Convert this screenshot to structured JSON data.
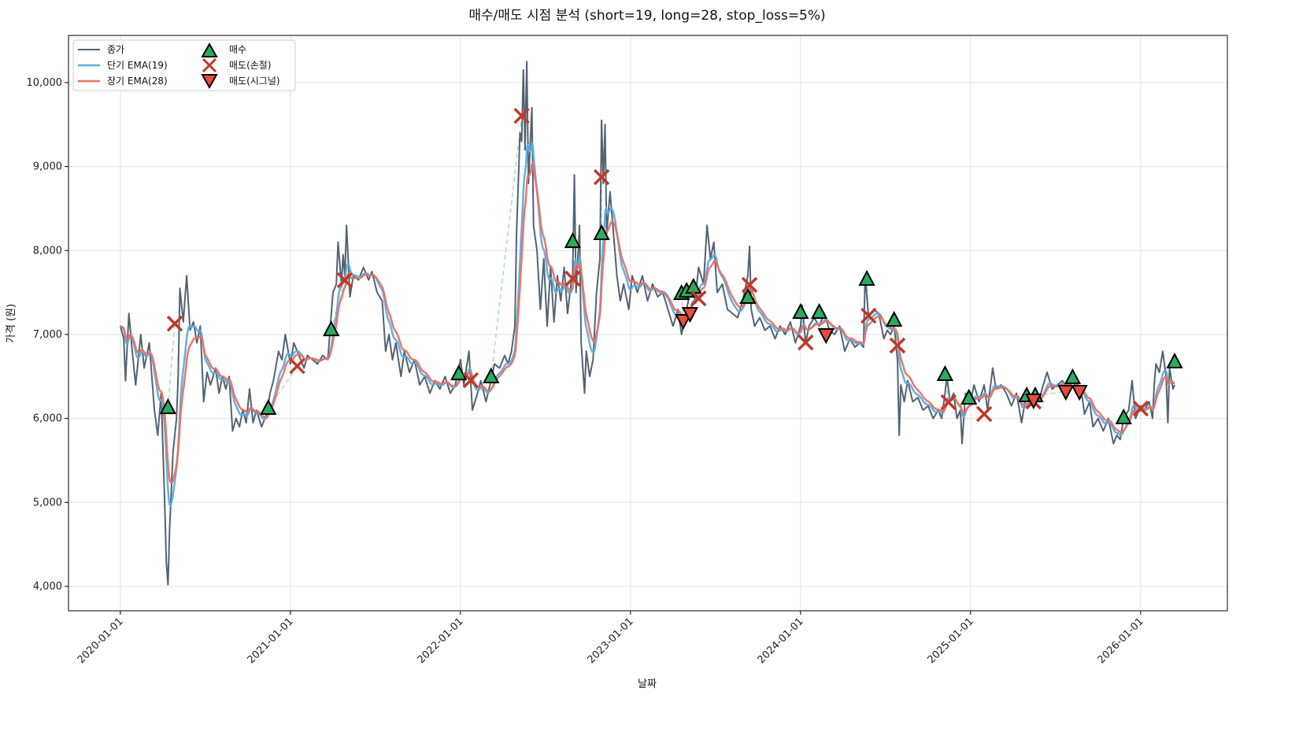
{
  "chart_data": {
    "type": "line",
    "title": "매수/매도 시점 분석 (short=19, long=28, stop_loss=5%)",
    "xlabel": "날짜",
    "ylabel": "가격 (원)",
    "xlim": [
      2019.695,
      2026.51
    ],
    "ylim": [
      3709,
      10562
    ],
    "grid": true,
    "legend_position": "top-left",
    "x_ticks": [
      {
        "value": 2020,
        "label": "2020-01-01"
      },
      {
        "value": 2021,
        "label": "2021-01-01"
      },
      {
        "value": 2022,
        "label": "2022-01-01"
      },
      {
        "value": 2023,
        "label": "2023-01-01"
      },
      {
        "value": 2024,
        "label": "2024-01-01"
      },
      {
        "value": 2025,
        "label": "2025-01-01"
      },
      {
        "value": 2026,
        "label": "2026-01-01"
      }
    ],
    "y_ticks": [
      {
        "value": 4000,
        "label": "4,000"
      },
      {
        "value": 5000,
        "label": "5,000"
      },
      {
        "value": 6000,
        "label": "6,000"
      },
      {
        "value": 7000,
        "label": "7,000"
      },
      {
        "value": 8000,
        "label": "8,000"
      },
      {
        "value": 9000,
        "label": "9,000"
      },
      {
        "value": 10000,
        "label": "10,000"
      }
    ],
    "legend": {
      "close": "종가",
      "short_ema": "단기 EMA(19)",
      "long_ema": "장기 EMA(28)",
      "buy": "매수",
      "sell_stop": "매도(손절)",
      "sell_signal": "매도(시그널)"
    },
    "colors": {
      "close": "#536272",
      "short_ema": "#5dade2",
      "long_ema": "#ec7063",
      "buy": "#27ae60",
      "sell_stop": "#c0392b",
      "sell_signal": "#e74c3c",
      "trade_line": "#a9dfbf"
    },
    "ema_spans": {
      "short": 19,
      "long": 28
    },
    "close": [
      [
        2020.0,
        7100
      ],
      [
        2020.02,
        6950
      ],
      [
        2020.03,
        6450
      ],
      [
        2020.05,
        7250
      ],
      [
        2020.07,
        6800
      ],
      [
        2020.09,
        6400
      ],
      [
        2020.12,
        7000
      ],
      [
        2020.14,
        6600
      ],
      [
        2020.17,
        6900
      ],
      [
        2020.2,
        6100
      ],
      [
        2020.22,
        5800
      ],
      [
        2020.24,
        6300
      ],
      [
        2020.26,
        5050
      ],
      [
        2020.27,
        4300
      ],
      [
        2020.28,
        4020
      ],
      [
        2020.29,
        4700
      ],
      [
        2020.31,
        5600
      ],
      [
        2020.33,
        6000
      ],
      [
        2020.34,
        6500
      ],
      [
        2020.35,
        7550
      ],
      [
        2020.37,
        7150
      ],
      [
        2020.39,
        7700
      ],
      [
        2020.41,
        7050
      ],
      [
        2020.43,
        7150
      ],
      [
        2020.45,
        6900
      ],
      [
        2020.47,
        7100
      ],
      [
        2020.49,
        6200
      ],
      [
        2020.51,
        6550
      ],
      [
        2020.53,
        6400
      ],
      [
        2020.56,
        6600
      ],
      [
        2020.58,
        6300
      ],
      [
        2020.6,
        6500
      ],
      [
        2020.62,
        6350
      ],
      [
        2020.64,
        6500
      ],
      [
        2020.66,
        5850
      ],
      [
        2020.68,
        6000
      ],
      [
        2020.7,
        5900
      ],
      [
        2020.72,
        6100
      ],
      [
        2020.74,
        5950
      ],
      [
        2020.76,
        6350
      ],
      [
        2020.78,
        5950
      ],
      [
        2020.8,
        6100
      ],
      [
        2020.83,
        5900
      ],
      [
        2020.86,
        6050
      ],
      [
        2020.88,
        6300
      ],
      [
        2020.9,
        6450
      ],
      [
        2020.93,
        6800
      ],
      [
        2020.95,
        6700
      ],
      [
        2020.97,
        7000
      ],
      [
        2021.0,
        6650
      ],
      [
        2021.02,
        6900
      ],
      [
        2021.05,
        6750
      ],
      [
        2021.08,
        6600
      ],
      [
        2021.1,
        6750
      ],
      [
        2021.13,
        6700
      ],
      [
        2021.16,
        6650
      ],
      [
        2021.19,
        6750
      ],
      [
        2021.22,
        6700
      ],
      [
        2021.25,
        7500
      ],
      [
        2021.27,
        7600
      ],
      [
        2021.28,
        8100
      ],
      [
        2021.3,
        7600
      ],
      [
        2021.31,
        7950
      ],
      [
        2021.32,
        7700
      ],
      [
        2021.33,
        8300
      ],
      [
        2021.35,
        7450
      ],
      [
        2021.37,
        7700
      ],
      [
        2021.4,
        7650
      ],
      [
        2021.43,
        7800
      ],
      [
        2021.46,
        7650
      ],
      [
        2021.48,
        7750
      ],
      [
        2021.51,
        7500
      ],
      [
        2021.54,
        7400
      ],
      [
        2021.56,
        6800
      ],
      [
        2021.58,
        7000
      ],
      [
        2021.6,
        6700
      ],
      [
        2021.62,
        6900
      ],
      [
        2021.65,
        6500
      ],
      [
        2021.67,
        6800
      ],
      [
        2021.7,
        6550
      ],
      [
        2021.73,
        6700
      ],
      [
        2021.76,
        6400
      ],
      [
        2021.79,
        6500
      ],
      [
        2021.82,
        6300
      ],
      [
        2021.85,
        6450
      ],
      [
        2021.88,
        6350
      ],
      [
        2021.91,
        6500
      ],
      [
        2021.94,
        6300
      ],
      [
        2021.97,
        6400
      ],
      [
        2022.0,
        6700
      ],
      [
        2022.02,
        6400
      ],
      [
        2022.05,
        6800
      ],
      [
        2022.07,
        6100
      ],
      [
        2022.1,
        6300
      ],
      [
        2022.12,
        6450
      ],
      [
        2022.15,
        6200
      ],
      [
        2022.18,
        6450
      ],
      [
        2022.2,
        6650
      ],
      [
        2022.23,
        6600
      ],
      [
        2022.26,
        6750
      ],
      [
        2022.28,
        6650
      ],
      [
        2022.3,
        6800
      ],
      [
        2022.32,
        7100
      ],
      [
        2022.33,
        8200
      ],
      [
        2022.35,
        9400
      ],
      [
        2022.36,
        9300
      ],
      [
        2022.37,
        10150
      ],
      [
        2022.38,
        9200
      ],
      [
        2022.39,
        10250
      ],
      [
        2022.4,
        8800
      ],
      [
        2022.42,
        9700
      ],
      [
        2022.43,
        8300
      ],
      [
        2022.45,
        8000
      ],
      [
        2022.47,
        7300
      ],
      [
        2022.49,
        7900
      ],
      [
        2022.51,
        7100
      ],
      [
        2022.53,
        7800
      ],
      [
        2022.55,
        7150
      ],
      [
        2022.57,
        7700
      ],
      [
        2022.59,
        7400
      ],
      [
        2022.61,
        7800
      ],
      [
        2022.63,
        7250
      ],
      [
        2022.65,
        7600
      ],
      [
        2022.66,
        7700
      ],
      [
        2022.67,
        8900
      ],
      [
        2022.68,
        7500
      ],
      [
        2022.7,
        8300
      ],
      [
        2022.71,
        6900
      ],
      [
        2022.73,
        6300
      ],
      [
        2022.74,
        6800
      ],
      [
        2022.76,
        6500
      ],
      [
        2022.78,
        6700
      ],
      [
        2022.8,
        7500
      ],
      [
        2022.82,
        7900
      ],
      [
        2022.83,
        9550
      ],
      [
        2022.84,
        8800
      ],
      [
        2022.85,
        9500
      ],
      [
        2022.86,
        8200
      ],
      [
        2022.88,
        8700
      ],
      [
        2022.9,
        8200
      ],
      [
        2022.92,
        7700
      ],
      [
        2022.94,
        7400
      ],
      [
        2022.96,
        7600
      ],
      [
        2022.99,
        7300
      ],
      [
        2023.01,
        7700
      ],
      [
        2023.04,
        7500
      ],
      [
        2023.07,
        7700
      ],
      [
        2023.1,
        7400
      ],
      [
        2023.13,
        7600
      ],
      [
        2023.16,
        7450
      ],
      [
        2023.19,
        7500
      ],
      [
        2023.22,
        7300
      ],
      [
        2023.25,
        7100
      ],
      [
        2023.28,
        7300
      ],
      [
        2023.3,
        7000
      ],
      [
        2023.33,
        7300
      ],
      [
        2023.36,
        7600
      ],
      [
        2023.38,
        7400
      ],
      [
        2023.4,
        7800
      ],
      [
        2023.43,
        7600
      ],
      [
        2023.45,
        8300
      ],
      [
        2023.47,
        7900
      ],
      [
        2023.49,
        8100
      ],
      [
        2023.51,
        7500
      ],
      [
        2023.54,
        7600
      ],
      [
        2023.57,
        7300
      ],
      [
        2023.6,
        7250
      ],
      [
        2023.63,
        7200
      ],
      [
        2023.66,
        7400
      ],
      [
        2023.69,
        7700
      ],
      [
        2023.7,
        8050
      ],
      [
        2023.71,
        7300
      ],
      [
        2023.73,
        7100
      ],
      [
        2023.76,
        7200
      ],
      [
        2023.79,
        7050
      ],
      [
        2023.82,
        7100
      ],
      [
        2023.85,
        6950
      ],
      [
        2023.88,
        7100
      ],
      [
        2023.91,
        7000
      ],
      [
        2023.94,
        7150
      ],
      [
        2023.97,
        6900
      ],
      [
        2024.0,
        7100
      ],
      [
        2024.01,
        7350
      ],
      [
        2024.03,
        6900
      ],
      [
        2024.05,
        7100
      ],
      [
        2024.08,
        7200
      ],
      [
        2024.11,
        7100
      ],
      [
        2024.14,
        7250
      ],
      [
        2024.17,
        7050
      ],
      [
        2024.2,
        7000
      ],
      [
        2024.23,
        7100
      ],
      [
        2024.26,
        6800
      ],
      [
        2024.29,
        6950
      ],
      [
        2024.32,
        6850
      ],
      [
        2024.35,
        6900
      ],
      [
        2024.37,
        6850
      ],
      [
        2024.38,
        7700
      ],
      [
        2024.4,
        7200
      ],
      [
        2024.43,
        7300
      ],
      [
        2024.46,
        7250
      ],
      [
        2024.49,
        6950
      ],
      [
        2024.51,
        7050
      ],
      [
        2024.53,
        7000
      ],
      [
        2024.55,
        7100
      ],
      [
        2024.57,
        6700
      ],
      [
        2024.58,
        5800
      ],
      [
        2024.59,
        6400
      ],
      [
        2024.61,
        6200
      ],
      [
        2024.63,
        6450
      ],
      [
        2024.66,
        6200
      ],
      [
        2024.69,
        6250
      ],
      [
        2024.72,
        6100
      ],
      [
        2024.75,
        6150
      ],
      [
        2024.78,
        6000
      ],
      [
        2024.81,
        6100
      ],
      [
        2024.83,
        6000
      ],
      [
        2024.85,
        6300
      ],
      [
        2024.86,
        6500
      ],
      [
        2024.88,
        6200
      ],
      [
        2024.9,
        6300
      ],
      [
        2024.92,
        6000
      ],
      [
        2024.94,
        6100
      ],
      [
        2024.95,
        5700
      ],
      [
        2024.97,
        6300
      ],
      [
        2025.0,
        6200
      ],
      [
        2025.02,
        6400
      ],
      [
        2025.05,
        6200
      ],
      [
        2025.08,
        6400
      ],
      [
        2025.1,
        6100
      ],
      [
        2025.13,
        6600
      ],
      [
        2025.15,
        6350
      ],
      [
        2025.18,
        6400
      ],
      [
        2025.21,
        6300
      ],
      [
        2025.24,
        6150
      ],
      [
        2025.27,
        6300
      ],
      [
        2025.3,
        5950
      ],
      [
        2025.32,
        6200
      ],
      [
        2025.35,
        6250
      ],
      [
        2025.38,
        6300
      ],
      [
        2025.4,
        6200
      ],
      [
        2025.42,
        6350
      ],
      [
        2025.45,
        6550
      ],
      [
        2025.48,
        6350
      ],
      [
        2025.51,
        6400
      ],
      [
        2025.54,
        6450
      ],
      [
        2025.57,
        6350
      ],
      [
        2025.6,
        6550
      ],
      [
        2025.62,
        6300
      ],
      [
        2025.65,
        6350
      ],
      [
        2025.67,
        6050
      ],
      [
        2025.7,
        6200
      ],
      [
        2025.72,
        5900
      ],
      [
        2025.75,
        6000
      ],
      [
        2025.78,
        5850
      ],
      [
        2025.81,
        6000
      ],
      [
        2025.84,
        5700
      ],
      [
        2025.86,
        5800
      ],
      [
        2025.88,
        5750
      ],
      [
        2025.9,
        6000
      ],
      [
        2025.93,
        6100
      ],
      [
        2025.95,
        6450
      ],
      [
        2025.97,
        6000
      ],
      [
        2026.0,
        6150
      ],
      [
        2026.02,
        6100
      ],
      [
        2026.05,
        6200
      ],
      [
        2026.07,
        6000
      ],
      [
        2026.08,
        6400
      ],
      [
        2026.09,
        6650
      ],
      [
        2026.11,
        6550
      ],
      [
        2026.13,
        6800
      ],
      [
        2026.15,
        6500
      ],
      [
        2026.16,
        5950
      ],
      [
        2026.17,
        6600
      ],
      [
        2026.19,
        6350
      ],
      [
        2026.2,
        6400
      ]
    ],
    "buy_points": [
      [
        2020.28,
        6127
      ],
      [
        2020.87,
        6118
      ],
      [
        2021.24,
        7055
      ],
      [
        2021.99,
        6530
      ],
      [
        2022.18,
        6493
      ],
      [
        2022.66,
        8105
      ],
      [
        2022.83,
        8199
      ],
      [
        2023.3,
        7486
      ],
      [
        2023.33,
        7514
      ],
      [
        2023.37,
        7561
      ],
      [
        2023.69,
        7440
      ],
      [
        2024.0,
        7261
      ],
      [
        2024.11,
        7261
      ],
      [
        2024.39,
        7655
      ],
      [
        2024.55,
        7168
      ],
      [
        2024.85,
        6521
      ],
      [
        2024.99,
        6240
      ],
      [
        2025.33,
        6268
      ],
      [
        2025.38,
        6268
      ],
      [
        2025.6,
        6484
      ],
      [
        2025.9,
        6006
      ],
      [
        2026.2,
        6671
      ]
    ],
    "sell_stop_points": [
      [
        2020.32,
        7130
      ],
      [
        2021.04,
        6624
      ],
      [
        2021.32,
        7646
      ],
      [
        2022.06,
        6455
      ],
      [
        2022.36,
        9604
      ],
      [
        2022.66,
        7665
      ],
      [
        2022.83,
        8874
      ],
      [
        2023.4,
        7430
      ],
      [
        2023.7,
        7590
      ],
      [
        2024.03,
        6905
      ],
      [
        2024.4,
        7224
      ],
      [
        2024.57,
        6868
      ],
      [
        2024.87,
        6193
      ],
      [
        2025.08,
        6053
      ],
      [
        2025.37,
        6202
      ],
      [
        2026.0,
        6118
      ]
    ],
    "sell_signal_points": [
      [
        2023.31,
        7168
      ],
      [
        2023.35,
        7252
      ],
      [
        2024.15,
        6999
      ],
      [
        2025.37,
        6221
      ],
      [
        2025.56,
        6324
      ],
      [
        2025.64,
        6324
      ]
    ]
  }
}
